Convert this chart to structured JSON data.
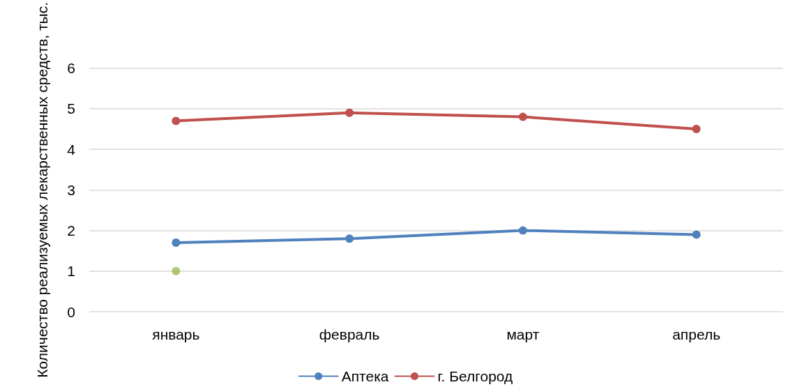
{
  "chart_data": {
    "type": "line",
    "ylabel": "Количество реализуемых лекарственных средств, тыс.",
    "categories": [
      "январь",
      "февраль",
      "март",
      "апрель"
    ],
    "series": [
      {
        "name": "Аптека",
        "color": "#4f81bd",
        "values": [
          1.7,
          1.8,
          2.0,
          1.9
        ]
      },
      {
        "name": "г. Белгород",
        "color": "#c0504d",
        "values": [
          4.7,
          4.9,
          4.8,
          4.5
        ]
      },
      {
        "type": "scatter",
        "color": "#9bbb59",
        "values": [
          1,
          null,
          null,
          null
        ]
      }
    ],
    "ylim": [
      0,
      6
    ],
    "yticks": [
      0,
      1,
      2,
      3,
      4,
      5,
      6
    ],
    "grid": "y",
    "legend": "bottom",
    "marker": "circle",
    "line_style": "solid"
  }
}
